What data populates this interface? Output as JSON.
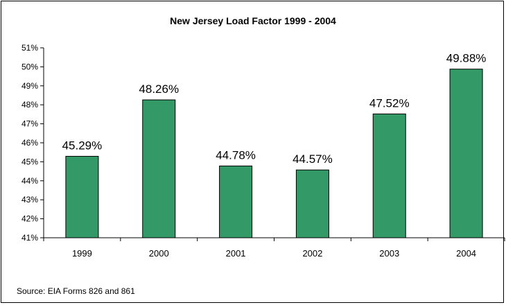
{
  "chart_data": {
    "type": "bar",
    "title": "New Jersey Load Factor 1999 - 2004",
    "categories": [
      "1999",
      "2000",
      "2001",
      "2002",
      "2003",
      "2004"
    ],
    "values": [
      45.29,
      48.26,
      44.78,
      44.57,
      47.52,
      49.88
    ],
    "value_labels": [
      "45.29%",
      "48.26%",
      "44.78%",
      "44.57%",
      "47.52%",
      "49.88%"
    ],
    "ylim": [
      41,
      51
    ],
    "yticks": [
      "41%",
      "42%",
      "43%",
      "44%",
      "45%",
      "46%",
      "47%",
      "48%",
      "49%",
      "50%",
      "51%"
    ],
    "xlabel": "",
    "ylabel": "",
    "grid": false,
    "legend": "none",
    "bar_color": "#339966"
  },
  "source": "Source: EIA Forms 826 and 861"
}
